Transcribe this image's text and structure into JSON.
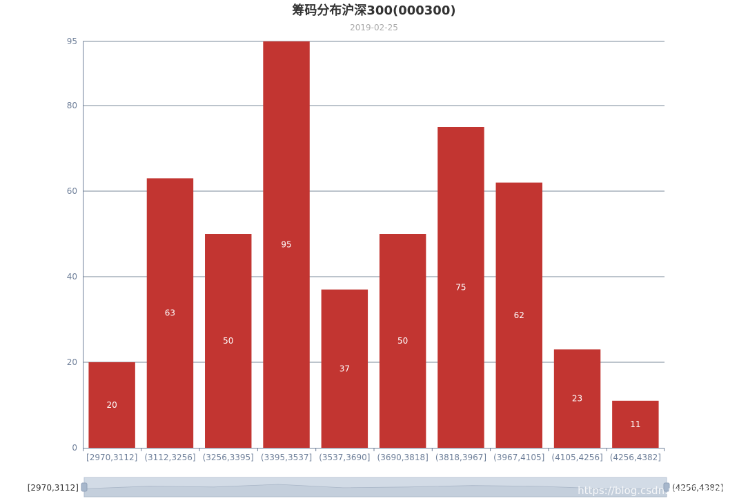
{
  "colors": {
    "bar": "#c23531",
    "axis": "#6e7f99",
    "grid": "#7a8899",
    "slider_fill": "#d2dbe6",
    "slider_border": "#b8c5d6"
  },
  "chart_data": {
    "type": "bar",
    "title": "筹码分布沪深300(000300)",
    "subtitle": "2019-02-25",
    "categories": [
      "[2970,3112]",
      "(3112,3256]",
      "(3256,3395]",
      "(3395,3537]",
      "(3537,3690]",
      "(3690,3818]",
      "(3818,3967]",
      "(3967,4105]",
      "(4105,4256]",
      "(4256,4382]"
    ],
    "values": [
      20,
      63,
      50,
      95,
      37,
      50,
      75,
      62,
      23,
      11
    ],
    "ylim": [
      0,
      95
    ],
    "yticks": [
      0,
      20,
      40,
      60,
      80,
      95
    ],
    "grid": true,
    "data_labels": "inside"
  },
  "datazoom": {
    "start_label": "[2970,3112]",
    "end_label": "(4256,4382]",
    "start_fraction": 0,
    "end_fraction": 1
  },
  "watermark": "https://blog.csdn.net/TOSWMYP"
}
